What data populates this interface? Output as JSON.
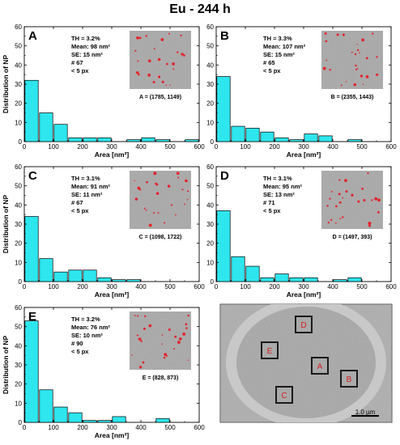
{
  "figure_title": "Eu - 244 h",
  "colors": {
    "bar": "#2ee6ee",
    "edge": "#000000",
    "region": "#d42020",
    "dot": "#e3242b"
  },
  "chart_data": [
    {
      "type": "bar",
      "label": "A",
      "xlabel": "Area [nm²]",
      "ylabel": "Distribution of NP",
      "xlim": [
        0,
        600
      ],
      "ylim": [
        0,
        60
      ],
      "xticks": [
        0,
        100,
        200,
        300,
        400,
        500,
        600
      ],
      "yticks": [
        0,
        10,
        20,
        30,
        40,
        50,
        60
      ],
      "bin_width": 50,
      "bins": [
        {
          "x": 25,
          "y": 32
        },
        {
          "x": 75,
          "y": 15
        },
        {
          "x": 125,
          "y": 9
        },
        {
          "x": 175,
          "y": 2
        },
        {
          "x": 225,
          "y": 2
        },
        {
          "x": 275,
          "y": 2
        },
        {
          "x": 375,
          "y": 1
        },
        {
          "x": 425,
          "y": 2
        },
        {
          "x": 475,
          "y": 1
        },
        {
          "x": 575,
          "y": 1
        }
      ],
      "stats": [
        "TH = 3.2%",
        "Mean: 98 nm²",
        "SE: 15 nm²",
        "# 67",
        "< 5 px"
      ],
      "caption": "A = (1785, 1149)"
    },
    {
      "type": "bar",
      "label": "B",
      "xlabel": "Area [nm²]",
      "ylabel": "",
      "xlim": [
        0,
        600
      ],
      "ylim": [
        0,
        60
      ],
      "xticks": [
        0,
        100,
        200,
        300,
        400,
        500,
        600
      ],
      "yticks": [
        0,
        10,
        20,
        30,
        40,
        50,
        60
      ],
      "bin_width": 50,
      "bins": [
        {
          "x": 25,
          "y": 34
        },
        {
          "x": 75,
          "y": 8
        },
        {
          "x": 125,
          "y": 7
        },
        {
          "x": 175,
          "y": 5
        },
        {
          "x": 225,
          "y": 2
        },
        {
          "x": 275,
          "y": 1
        },
        {
          "x": 325,
          "y": 4
        },
        {
          "x": 375,
          "y": 3
        },
        {
          "x": 475,
          "y": 1
        }
      ],
      "stats": [
        "TH = 3.3%",
        "Mean: 107 nm²",
        "SE: 15 nm²",
        "# 65",
        "< 5 px"
      ],
      "caption": "B = (2355, 1443)"
    },
    {
      "type": "bar",
      "label": "C",
      "xlabel": "Area [nm²]",
      "ylabel": "Distribution of NP",
      "xlim": [
        0,
        600
      ],
      "ylim": [
        0,
        60
      ],
      "xticks": [
        0,
        100,
        200,
        300,
        400,
        500,
        600
      ],
      "yticks": [
        0,
        10,
        20,
        30,
        40,
        50,
        60
      ],
      "bin_width": 50,
      "bins": [
        {
          "x": 25,
          "y": 34
        },
        {
          "x": 75,
          "y": 12
        },
        {
          "x": 125,
          "y": 5
        },
        {
          "x": 175,
          "y": 6
        },
        {
          "x": 225,
          "y": 6
        },
        {
          "x": 275,
          "y": 2
        },
        {
          "x": 325,
          "y": 1
        },
        {
          "x": 375,
          "y": 1
        }
      ],
      "stats": [
        "TH = 3.1%",
        "Mean: 91 nm²",
        "SE: 11 nm²",
        "# 67",
        "< 5 px"
      ],
      "caption": "C = (1098, 1722)"
    },
    {
      "type": "bar",
      "label": "D",
      "xlabel": "Area [nm²]",
      "ylabel": "",
      "xlim": [
        0,
        600
      ],
      "ylim": [
        0,
        60
      ],
      "xticks": [
        0,
        100,
        200,
        300,
        400,
        500,
        600
      ],
      "yticks": [
        0,
        10,
        20,
        30,
        40,
        50,
        60
      ],
      "bin_width": 50,
      "bins": [
        {
          "x": 25,
          "y": 37
        },
        {
          "x": 75,
          "y": 13
        },
        {
          "x": 125,
          "y": 8
        },
        {
          "x": 175,
          "y": 2
        },
        {
          "x": 225,
          "y": 4
        },
        {
          "x": 275,
          "y": 2
        },
        {
          "x": 325,
          "y": 2
        },
        {
          "x": 425,
          "y": 1
        },
        {
          "x": 475,
          "y": 2
        }
      ],
      "stats": [
        "TH = 3.1%",
        "Mean: 95 nm²",
        "SE: 13 nm²",
        "# 71",
        "< 5 px"
      ],
      "caption": "D = (1497, 393)"
    },
    {
      "type": "bar",
      "label": "E",
      "xlabel": "Area [nm²]",
      "ylabel": "Distribution of NP",
      "xlim": [
        0,
        600
      ],
      "ylim": [
        0,
        60
      ],
      "xticks": [
        0,
        100,
        200,
        300,
        400,
        500,
        600
      ],
      "yticks": [
        0,
        10,
        20,
        30,
        40,
        50,
        60
      ],
      "bin_width": 50,
      "bins": [
        {
          "x": 25,
          "y": 53
        },
        {
          "x": 75,
          "y": 17
        },
        {
          "x": 125,
          "y": 8
        },
        {
          "x": 175,
          "y": 5
        },
        {
          "x": 225,
          "y": 1
        },
        {
          "x": 275,
          "y": 1
        },
        {
          "x": 325,
          "y": 3
        },
        {
          "x": 475,
          "y": 2
        }
      ],
      "stats": [
        "TH = 3.2%",
        "Mean: 76 nm²",
        "SE: 10 nm²",
        "# 90",
        "< 5 px"
      ],
      "caption": "E = (828, 873)"
    }
  ],
  "overview": {
    "regions": [
      "D",
      "E",
      "A",
      "B",
      "C"
    ],
    "scale_bar": "1.0 µm"
  }
}
